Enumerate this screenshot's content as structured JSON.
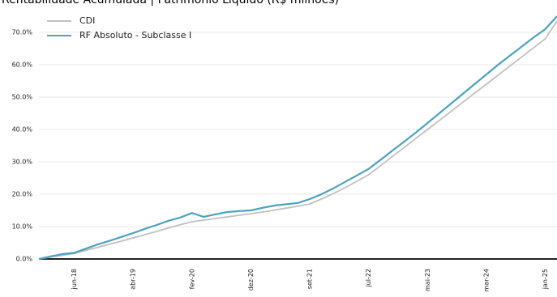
{
  "chart_data": {
    "type": "line",
    "title": "Rentabilidade Acumulada | Patrimônio Líquido (R$ milhões)",
    "categories": [
      null,
      null,
      null,
      "jun-18",
      null,
      null,
      null,
      null,
      "abr-19",
      null,
      null,
      null,
      null,
      "fev-20",
      null,
      null,
      null,
      null,
      "dez-20",
      null,
      null,
      null,
      null,
      "set-21",
      null,
      null,
      null,
      null,
      "jul-22",
      null,
      null,
      null,
      null,
      "mai-23",
      null,
      null,
      null,
      null,
      "mar-24",
      null,
      null,
      null,
      null,
      "jan-25",
      null
    ],
    "series": [
      {
        "name": "CDI",
        "color": "#c0c0c0",
        "values": [
          0,
          0.6,
          1.1,
          1.7,
          2.7,
          3.6,
          4.6,
          5.5,
          6.5,
          7.5,
          8.5,
          9.6,
          10.6,
          11.5,
          12.0,
          12.5,
          13.0,
          13.5,
          14.0,
          14.5,
          15.1,
          15.7,
          16.3,
          17.0,
          18.5,
          20.2,
          22.0,
          24.0,
          26.0,
          28.8,
          31.6,
          34.4,
          37.2,
          40.0,
          42.8,
          45.6,
          48.4,
          51.2,
          54.0,
          56.8,
          59.6,
          62.4,
          65.2,
          68.0,
          73.5
        ]
      },
      {
        "name": "RF Absoluto - Subclasse I",
        "color": "#4aa3c0",
        "values": [
          0,
          0.8,
          1.5,
          1.9,
          3.2,
          4.5,
          5.6,
          6.8,
          8.0,
          9.3,
          10.5,
          11.8,
          12.8,
          14.2,
          13.0,
          13.8,
          14.5,
          14.8,
          15.0,
          15.8,
          16.5,
          16.9,
          17.3,
          18.5,
          20.0,
          21.8,
          23.8,
          25.8,
          27.8,
          30.6,
          33.4,
          36.2,
          39.0,
          42.0,
          45.0,
          48.0,
          51.0,
          54.0,
          57.0,
          60.0,
          62.8,
          65.6,
          68.4,
          71.0,
          75.0
        ]
      }
    ],
    "ylim": [
      -1.5,
      77
    ],
    "yticks": [
      {
        "value": 0,
        "label": "0.0%"
      },
      {
        "value": 10,
        "label": "10.0%"
      },
      {
        "value": 20,
        "label": "20.0%"
      },
      {
        "value": 30,
        "label": "30.0%"
      },
      {
        "value": 40,
        "label": "40.0%"
      },
      {
        "value": 50,
        "label": "50.0%"
      },
      {
        "value": 60,
        "label": "60.0%"
      },
      {
        "value": 70,
        "label": "70.0%"
      }
    ],
    "grid": true,
    "legend": "upper left"
  }
}
